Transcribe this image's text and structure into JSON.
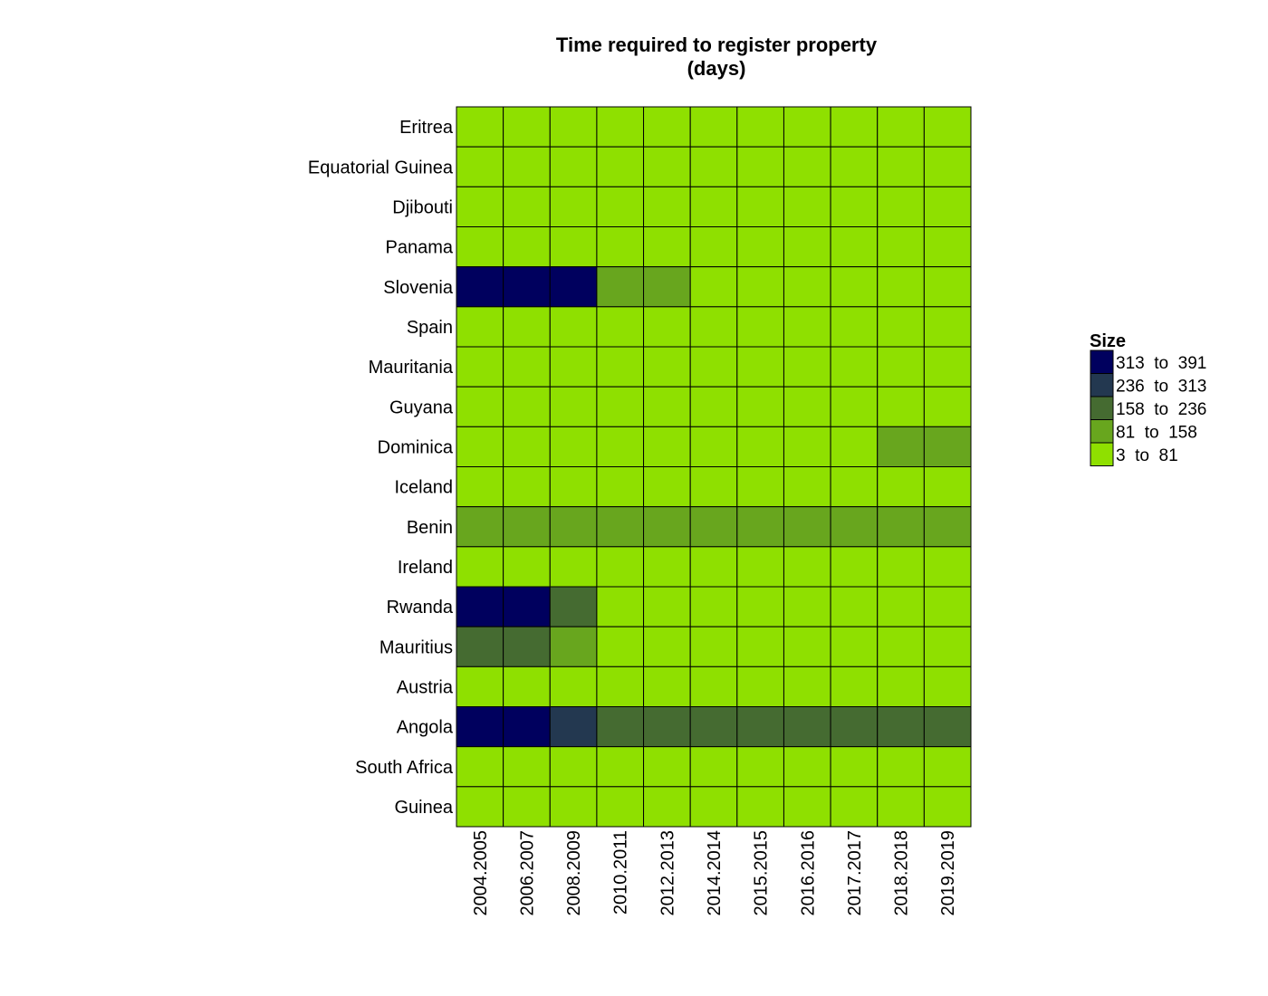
{
  "chart_data": {
    "type": "heatmap",
    "title_lines": [
      "Time required to register property",
      "(days)"
    ],
    "rows": [
      "Eritrea",
      "Equatorial Guinea",
      "Djibouti",
      "Panama",
      "Slovenia",
      "Spain",
      "Mauritania",
      "Guyana",
      "Dominica",
      "Iceland",
      "Benin",
      "Ireland",
      "Rwanda",
      "Mauritius",
      "Austria",
      "Angola",
      "South Africa",
      "Guinea"
    ],
    "columns": [
      "2004.2005",
      "2006.2007",
      "2008.2009",
      "2010.2011",
      "2012.2013",
      "2014.2014",
      "2015.2015",
      "2016.2016",
      "2017.2017",
      "2018.2018",
      "2019.2019"
    ],
    "bins": [
      {
        "label": "313  to  391",
        "color": "#00005e"
      },
      {
        "label": "236  to  313",
        "color": "#233850"
      },
      {
        "label": "158  to  236",
        "color": "#456b31"
      },
      {
        "label": "81  to  158",
        "color": "#68a61e"
      },
      {
        "label": "3  to  81",
        "color": "#8fe000"
      }
    ],
    "cells": [
      [
        4,
        4,
        4,
        4,
        4,
        4,
        4,
        4,
        4,
        4,
        4
      ],
      [
        4,
        4,
        4,
        4,
        4,
        4,
        4,
        4,
        4,
        4,
        4
      ],
      [
        4,
        4,
        4,
        4,
        4,
        4,
        4,
        4,
        4,
        4,
        4
      ],
      [
        4,
        4,
        4,
        4,
        4,
        4,
        4,
        4,
        4,
        4,
        4
      ],
      [
        0,
        0,
        0,
        3,
        3,
        4,
        4,
        4,
        4,
        4,
        4
      ],
      [
        4,
        4,
        4,
        4,
        4,
        4,
        4,
        4,
        4,
        4,
        4
      ],
      [
        4,
        4,
        4,
        4,
        4,
        4,
        4,
        4,
        4,
        4,
        4
      ],
      [
        4,
        4,
        4,
        4,
        4,
        4,
        4,
        4,
        4,
        4,
        4
      ],
      [
        4,
        4,
        4,
        4,
        4,
        4,
        4,
        4,
        4,
        3,
        3
      ],
      [
        4,
        4,
        4,
        4,
        4,
        4,
        4,
        4,
        4,
        4,
        4
      ],
      [
        3,
        3,
        3,
        3,
        3,
        3,
        3,
        3,
        3,
        3,
        3
      ],
      [
        4,
        4,
        4,
        4,
        4,
        4,
        4,
        4,
        4,
        4,
        4
      ],
      [
        0,
        0,
        2,
        4,
        4,
        4,
        4,
        4,
        4,
        4,
        4
      ],
      [
        2,
        2,
        3,
        4,
        4,
        4,
        4,
        4,
        4,
        4,
        4
      ],
      [
        4,
        4,
        4,
        4,
        4,
        4,
        4,
        4,
        4,
        4,
        4
      ],
      [
        0,
        0,
        1,
        2,
        2,
        2,
        2,
        2,
        2,
        2,
        2
      ],
      [
        4,
        4,
        4,
        4,
        4,
        4,
        4,
        4,
        4,
        4,
        4
      ],
      [
        4,
        4,
        4,
        4,
        4,
        4,
        4,
        4,
        4,
        4,
        4
      ]
    ],
    "legend": {
      "title": "Size",
      "position": "right"
    },
    "grid_color": "#000000"
  }
}
